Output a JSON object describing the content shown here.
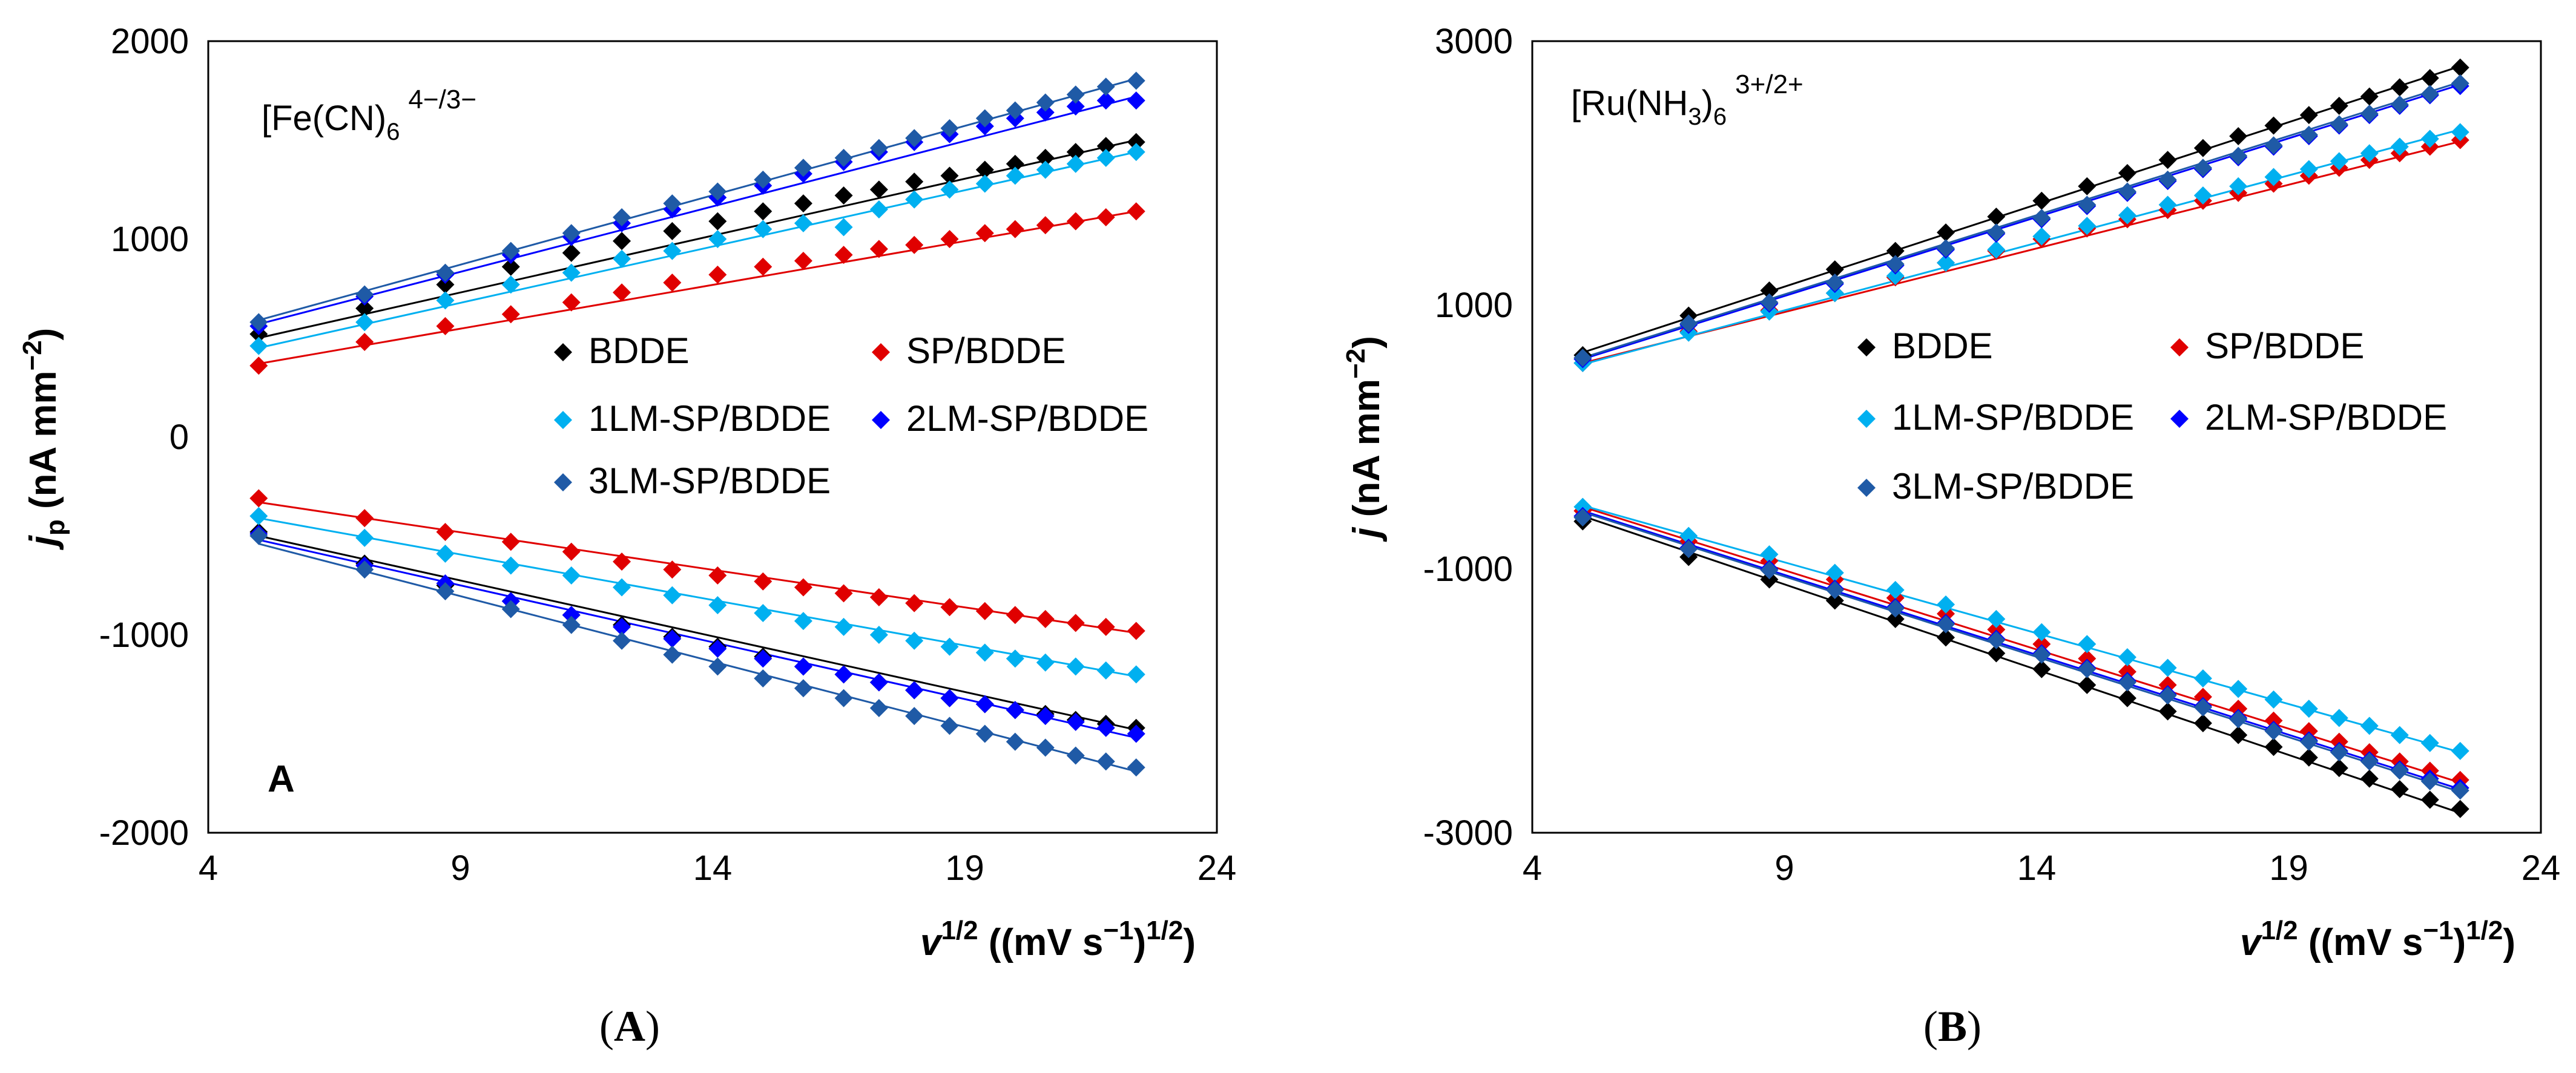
{
  "chart_data": [
    {
      "type": "scatter",
      "panel_caption": "(A)",
      "panel_letter": "A",
      "annotation": {
        "base": "[Fe(CN)",
        "sub": "6",
        "sup": "4−/3−"
      },
      "ylabel": {
        "main": "j",
        "sub": "p",
        "rest": " (nA mm",
        "sup": "−2",
        "close": ")"
      },
      "xlabel": {
        "main": "v",
        "sup": "1/2",
        "rest": " ((mV s",
        "sup2": "−1",
        "close": ")",
        "sup3": "1/2",
        "end": ")"
      },
      "xlim": [
        4,
        24
      ],
      "ylim": [
        -2000,
        2000
      ],
      "xticks": [
        4,
        9,
        14,
        19,
        24
      ],
      "xtick_labels": [
        "4",
        "9",
        "14",
        "19",
        "24"
      ],
      "yticks": [
        -2000,
        -1000,
        0,
        1000,
        2000
      ],
      "ytick_labels": [
        "-2000",
        "-1000",
        "0",
        "1000",
        "2000"
      ],
      "x": [
        5.0,
        7.1,
        8.7,
        10.0,
        11.2,
        12.2,
        13.2,
        14.1,
        15.0,
        15.8,
        16.6,
        17.3,
        18.0,
        18.7,
        19.4,
        20.0,
        20.6,
        21.2,
        21.8,
        22.4
      ],
      "series": [
        {
          "name": "BDDE",
          "color": "#000000",
          "anodic": [
            520,
            650,
            770,
            860,
            930,
            990,
            1040,
            1090,
            1140,
            1180,
            1220,
            1250,
            1290,
            1320,
            1350,
            1380,
            1410,
            1440,
            1470,
            1490
          ],
          "cathodic": [
            -480,
            -640,
            -750,
            -830,
            -900,
            -950,
            -1010,
            -1060,
            -1110,
            -1160,
            -1200,
            -1240,
            -1280,
            -1320,
            -1350,
            -1380,
            -1400,
            -1430,
            -1450,
            -1470
          ],
          "fit_anodic": [
            500,
            1500
          ],
          "fit_cathodic": [
            -500,
            -1480
          ]
        },
        {
          "name": "SP/BDDE",
          "color": "#e00000",
          "anodic": [
            360,
            480,
            560,
            620,
            680,
            730,
            780,
            820,
            860,
            890,
            920,
            950,
            970,
            1000,
            1030,
            1050,
            1070,
            1090,
            1110,
            1140
          ],
          "cathodic": [
            -310,
            -410,
            -480,
            -530,
            -580,
            -630,
            -670,
            -700,
            -730,
            -760,
            -790,
            -810,
            -840,
            -860,
            -880,
            -900,
            -920,
            -940,
            -960,
            -980
          ],
          "fit_anodic": [
            370,
            1140
          ],
          "fit_cathodic": [
            -330,
            -990
          ]
        },
        {
          "name": "1LM-SP/BDDE",
          "color": "#00b0f0",
          "anodic": [
            460,
            580,
            690,
            770,
            830,
            900,
            940,
            1000,
            1050,
            1080,
            1060,
            1150,
            1200,
            1250,
            1280,
            1320,
            1350,
            1380,
            1410,
            1440
          ],
          "cathodic": [
            -400,
            -510,
            -590,
            -650,
            -700,
            -760,
            -800,
            -850,
            -890,
            -930,
            -960,
            -1000,
            -1030,
            -1060,
            -1090,
            -1120,
            -1140,
            -1160,
            -1180,
            -1200
          ],
          "fit_anodic": [
            450,
            1440
          ],
          "fit_cathodic": [
            -410,
            -1210
          ]
        },
        {
          "name": "2LM-SP/BDDE",
          "color": "#0000ff",
          "anodic": [
            560,
            710,
            820,
            920,
            1010,
            1080,
            1150,
            1210,
            1270,
            1330,
            1390,
            1440,
            1490,
            1530,
            1570,
            1610,
            1640,
            1670,
            1700,
            1700
          ],
          "cathodic": [
            -490,
            -650,
            -740,
            -830,
            -900,
            -960,
            -1020,
            -1070,
            -1120,
            -1160,
            -1200,
            -1240,
            -1280,
            -1320,
            -1350,
            -1380,
            -1410,
            -1440,
            -1470,
            -1500
          ],
          "fit_anodic": [
            570,
            1720
          ],
          "fit_cathodic": [
            -520,
            -1520
          ]
        },
        {
          "name": "3LM-SP/BDDE",
          "color": "#1f5aa6",
          "anodic": [
            580,
            720,
            830,
            940,
            1030,
            1110,
            1180,
            1240,
            1300,
            1360,
            1410,
            1460,
            1510,
            1560,
            1610,
            1650,
            1690,
            1730,
            1770,
            1800
          ],
          "cathodic": [
            -500,
            -670,
            -780,
            -870,
            -950,
            -1030,
            -1100,
            -1160,
            -1220,
            -1270,
            -1320,
            -1370,
            -1410,
            -1460,
            -1500,
            -1540,
            -1570,
            -1610,
            -1640,
            -1670
          ],
          "fit_anodic": [
            590,
            1810
          ],
          "fit_cathodic": [
            -540,
            -1690
          ]
        }
      ]
    },
    {
      "type": "scatter",
      "panel_caption": "(B)",
      "annotation": {
        "base": "[Ru(NH",
        "sub": "3",
        "mid": ")",
        "sub2": "6",
        "sup": "3+/2+"
      },
      "ylabel": {
        "main": "j",
        "rest": " (nA mm",
        "sup": "−2",
        "close": ")"
      },
      "xlabel": {
        "main": "v",
        "sup": "1/2",
        "rest": " ((mV s",
        "sup2": "−1",
        "close": ")",
        "sup3": "1/2",
        "end": ")"
      },
      "xlim": [
        4,
        24
      ],
      "ylim": [
        -3000,
        3000
      ],
      "xticks": [
        4,
        9,
        14,
        19,
        24
      ],
      "xtick_labels": [
        "4",
        "9",
        "14",
        "19",
        "24"
      ],
      "yticks": [
        -3000,
        -1000,
        1000,
        3000
      ],
      "ytick_labels": [
        "-3000",
        "-1000",
        "1000",
        "3000"
      ],
      "x": [
        5.0,
        7.1,
        8.7,
        10.0,
        11.2,
        12.2,
        13.2,
        14.1,
        15.0,
        15.8,
        16.6,
        17.3,
        18.0,
        18.7,
        19.4,
        20.0,
        20.6,
        21.2,
        21.8,
        22.4
      ],
      "series": [
        {
          "name": "BDDE",
          "color": "#000000",
          "anodic": [
            620,
            920,
            1110,
            1270,
            1410,
            1550,
            1670,
            1790,
            1900,
            2000,
            2100,
            2190,
            2280,
            2360,
            2440,
            2510,
            2580,
            2650,
            2720,
            2800
          ],
          "cathodic": [
            -640,
            -910,
            -1080,
            -1240,
            -1380,
            -1520,
            -1640,
            -1760,
            -1880,
            -1980,
            -2080,
            -2170,
            -2260,
            -2350,
            -2430,
            -2510,
            -2590,
            -2670,
            -2750,
            -2820
          ],
          "fit_anodic": [
            640,
            2810
          ],
          "fit_cathodic": [
            -600,
            -2850
          ]
        },
        {
          "name": "SP/BDDE",
          "color": "#e00000",
          "anodic": [
            560,
            800,
            960,
            1090,
            1210,
            1320,
            1410,
            1500,
            1580,
            1650,
            1720,
            1790,
            1850,
            1920,
            1980,
            2040,
            2100,
            2150,
            2200,
            2250
          ],
          "cathodic": [
            -560,
            -790,
            -940,
            -1080,
            -1220,
            -1340,
            -1460,
            -1570,
            -1680,
            -1780,
            -1880,
            -1970,
            -2060,
            -2150,
            -2230,
            -2310,
            -2390,
            -2460,
            -2530,
            -2600
          ],
          "fit_anodic": [
            560,
            2240
          ],
          "fit_cathodic": [
            -530,
            -2620
          ]
        },
        {
          "name": "1LM-SP/BDDE",
          "color": "#00b0f0",
          "anodic": [
            560,
            790,
            950,
            1090,
            1220,
            1320,
            1420,
            1520,
            1600,
            1680,
            1760,
            1830,
            1900,
            1970,
            2030,
            2090,
            2150,
            2200,
            2260,
            2310
          ],
          "cathodic": [
            -530,
            -750,
            -890,
            -1030,
            -1160,
            -1270,
            -1380,
            -1480,
            -1570,
            -1670,
            -1750,
            -1830,
            -1910,
            -1990,
            -2060,
            -2130,
            -2190,
            -2260,
            -2320,
            -2380
          ],
          "fit_anodic": [
            550,
            2330
          ],
          "fit_cathodic": [
            -520,
            -2390
          ]
        },
        {
          "name": "2LM-SP/BDDE",
          "color": "#0000ff",
          "anodic": [
            590,
            850,
            1010,
            1160,
            1300,
            1420,
            1540,
            1650,
            1750,
            1850,
            1940,
            2030,
            2120,
            2200,
            2280,
            2360,
            2440,
            2510,
            2590,
            2660
          ],
          "cathodic": [
            -600,
            -840,
            -1000,
            -1150,
            -1290,
            -1410,
            -1530,
            -1640,
            -1750,
            -1850,
            -1950,
            -2040,
            -2130,
            -2220,
            -2300,
            -2380,
            -2450,
            -2520,
            -2590,
            -2660
          ],
          "fit_anodic": [
            590,
            2670
          ],
          "fit_cathodic": [
            -560,
            -2670
          ]
        },
        {
          "name": "3LM-SP/BDDE",
          "color": "#1f5aa6",
          "anodic": [
            600,
            860,
            1020,
            1170,
            1310,
            1430,
            1550,
            1660,
            1760,
            1860,
            1950,
            2040,
            2130,
            2210,
            2290,
            2370,
            2450,
            2520,
            2600,
            2680
          ],
          "cathodic": [
            -610,
            -850,
            -1010,
            -1160,
            -1300,
            -1420,
            -1540,
            -1650,
            -1760,
            -1860,
            -1960,
            -2050,
            -2140,
            -2230,
            -2310,
            -2390,
            -2460,
            -2530,
            -2610,
            -2680
          ],
          "fit_anodic": [
            600,
            2690
          ],
          "fit_cathodic": [
            -570,
            -2690
          ]
        }
      ]
    }
  ]
}
